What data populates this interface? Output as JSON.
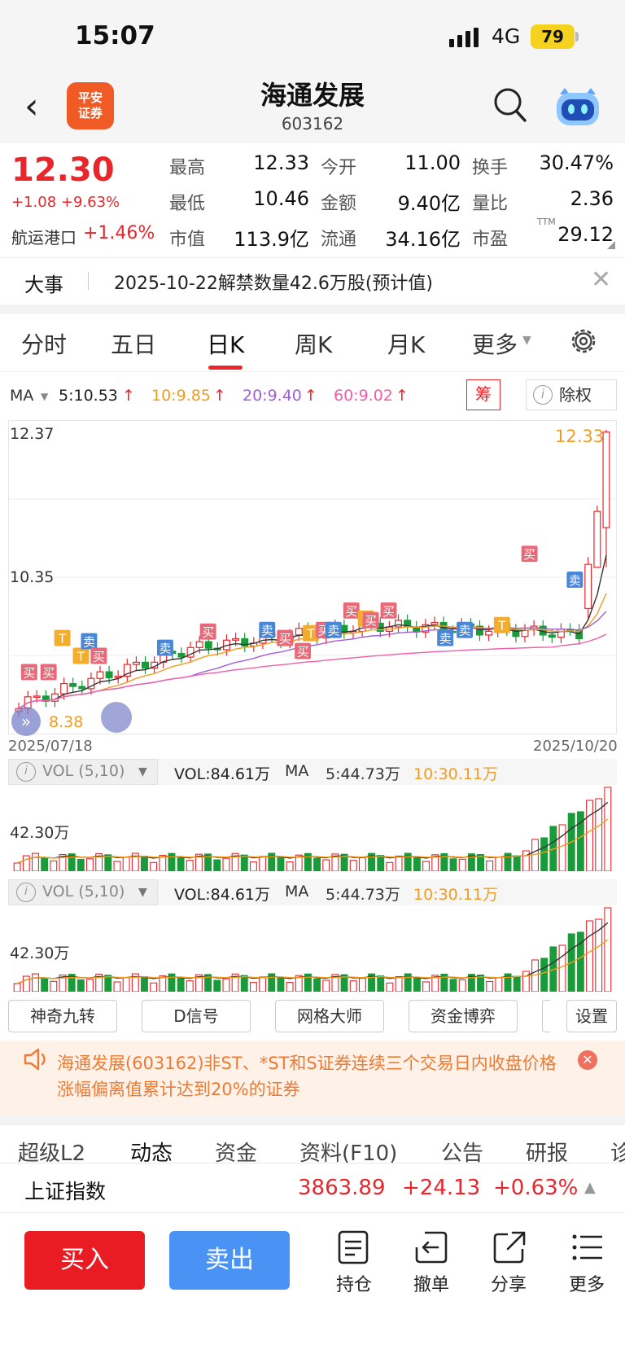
{
  "status_bar": {
    "time": "15:07",
    "network": "4G",
    "battery": "79"
  },
  "header": {
    "stock_name": "海通发展",
    "stock_code": "603162",
    "logo_text_1": "平安",
    "logo_text_2": "证券"
  },
  "quote": {
    "price": "12.30",
    "change": "+1.08 +9.63%",
    "sector_name": "航运港口",
    "sector_change": "+1.46%",
    "rows": [
      {
        "l1": "最高",
        "v1": "12.33",
        "l2": "今开",
        "v2": "11.00",
        "l3": "换手",
        "v3": "30.47%"
      },
      {
        "l1": "最低",
        "v1": "10.46",
        "l2": "金额",
        "v2": "9.40亿",
        "l3": "量比",
        "v3": "2.36"
      },
      {
        "l1": "市值",
        "v1": "113.9亿",
        "l2": "流通",
        "v2": "34.16亿",
        "l3": "市盈",
        "v3": "29.12"
      }
    ],
    "pe_sup": "TTM"
  },
  "event": {
    "label": "大事",
    "text": "2025-10-22解禁数量42.6万股(预计值)"
  },
  "period_tabs": [
    "分时",
    "五日",
    "日K",
    "周K",
    "月K",
    "更多"
  ],
  "active_tab": "日K",
  "ma": {
    "label": "MA",
    "ma5": "5:10.53",
    "ma10": "10:9.85",
    "ma20": "20:9.40",
    "ma60": "60:9.02",
    "chip_label": "筹",
    "fq_label": "除权"
  },
  "kline_axis": {
    "top": "12.37",
    "mid": "10.35",
    "high_mark": "12.33",
    "low_mark": "8.38",
    "date_start": "2025/07/18",
    "date_end": "2025/10/20"
  },
  "signals": {
    "buy": "买",
    "sell": "卖",
    "t": "T"
  },
  "vol_panels": [
    {
      "name": "VOL (5,10)",
      "vol": "VOL:84.61万",
      "ma_label": "MA",
      "ma5": "5:44.73万",
      "ma10": "10:30.11万",
      "axis": "42.30万"
    },
    {
      "name": "VOL (5,10)",
      "vol": "VOL:84.61万",
      "ma_label": "MA",
      "ma5": "5:44.73万",
      "ma10": "10:30.11万",
      "axis": "42.30万"
    }
  ],
  "indicator_buttons": [
    "神奇九转",
    "D信号",
    "网格大师",
    "资金博弈",
    "设置"
  ],
  "notice": {
    "text": "海通发展(603162)非ST、*ST和S证券连续三个交易日内收盘价格涨幅偏离值累计达到20%的证券"
  },
  "info_tabs": [
    "超级L2",
    "动态",
    "资金",
    "资料(F10)",
    "公告",
    "研报",
    "诊"
  ],
  "index_bar": {
    "name": "上证指数",
    "value": "3863.89",
    "change": "+24.13",
    "pct": "+0.63%"
  },
  "actions": {
    "buy": "买入",
    "sell": "卖出",
    "position": "持仓",
    "cancel": "撤单",
    "share": "分享",
    "more": "更多"
  },
  "chart_data": {
    "type": "candlestick",
    "x_start": "2025/07/18",
    "x_end": "2025/10/20",
    "ylim": [
      8.2,
      12.45
    ],
    "ohlc_last_days": [
      {
        "o": 9.9,
        "h": 10.6,
        "l": 9.75,
        "c": 10.5
      },
      {
        "o": 10.46,
        "h": 11.3,
        "l": 10.46,
        "c": 11.22
      },
      {
        "o": 11.0,
        "h": 12.33,
        "l": 10.46,
        "c": 12.3
      }
    ],
    "colors": {
      "up": "#e8262b",
      "down": "#1a9b3a",
      "ma5": "#333333",
      "ma10": "#f29c1f",
      "ma20": "#a15fd6",
      "ma60": "#ef5ea8"
    },
    "last_volume": "84.61万"
  }
}
